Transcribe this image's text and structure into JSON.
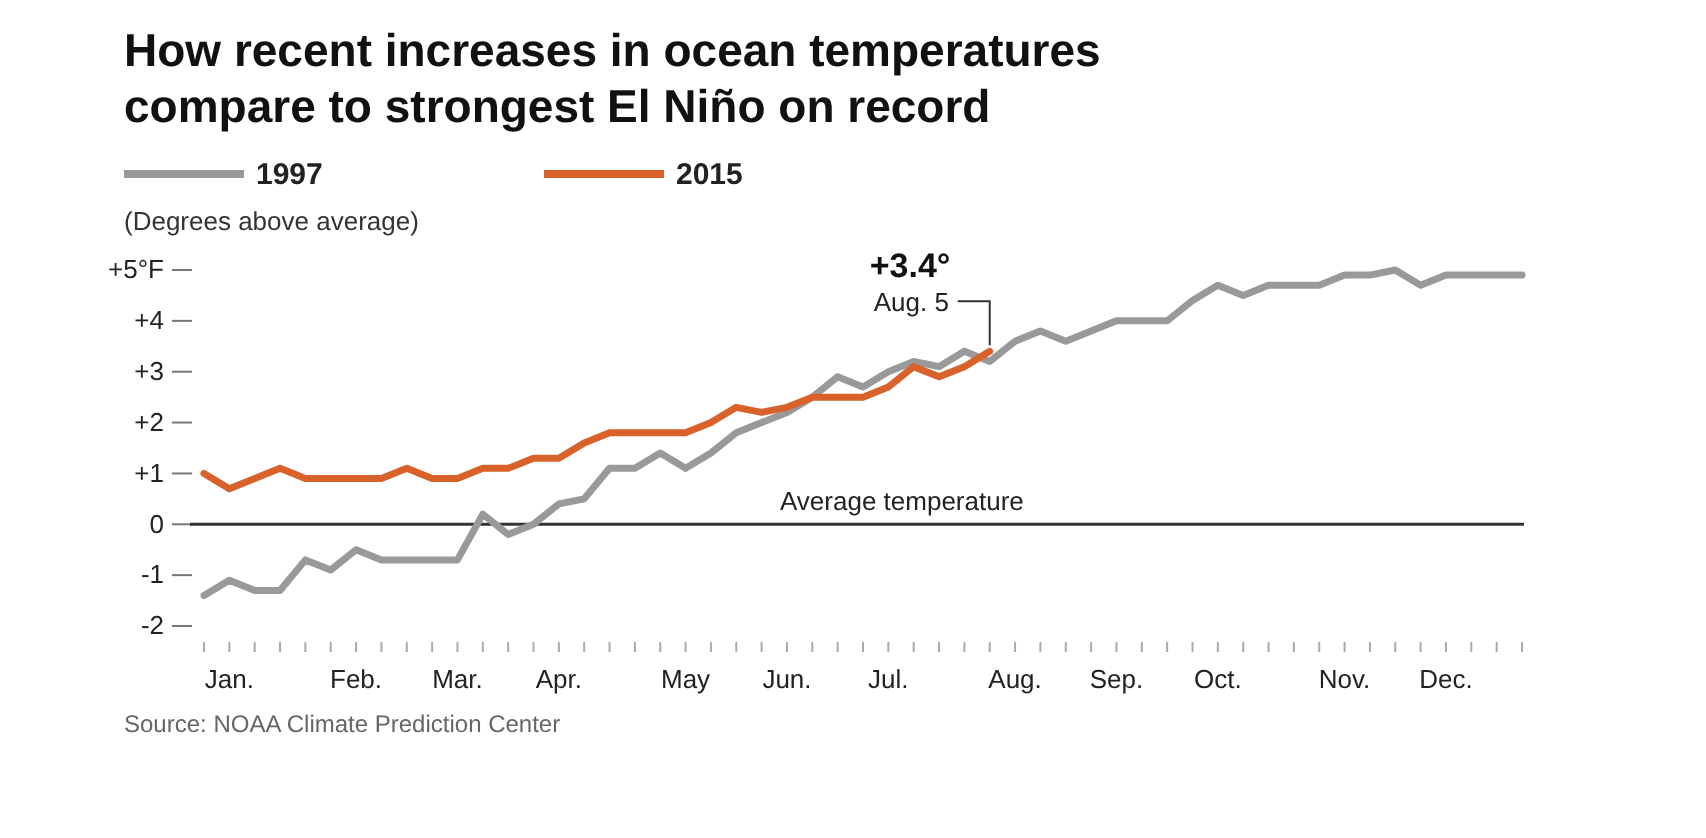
{
  "chart_data": {
    "type": "line",
    "title": "How recent increases in ocean temperatures\ncompare to strongest El Niño on record",
    "ylabel": "(Degrees above average)",
    "categories": [
      null,
      "Jan.",
      null,
      null,
      null,
      null,
      "Feb.",
      null,
      null,
      null,
      "Mar.",
      null,
      null,
      null,
      "Apr.",
      null,
      null,
      null,
      null,
      "May",
      null,
      null,
      null,
      "Jun.",
      null,
      null,
      null,
      "Jul.",
      null,
      null,
      null,
      null,
      "Aug.",
      null,
      null,
      null,
      "Sep.",
      null,
      null,
      null,
      "Oct.",
      null,
      null,
      null,
      null,
      "Nov.",
      null,
      null,
      null,
      "Dec.",
      null,
      null,
      null
    ],
    "series": [
      {
        "name": "1997",
        "color": "#999999",
        "values": [
          -1.4,
          -1.1,
          -1.3,
          -1.3,
          -0.7,
          -0.9,
          -0.5,
          -0.7,
          -0.7,
          -0.7,
          -0.7,
          0.2,
          -0.2,
          0,
          0.4,
          0.5,
          1.1,
          1.1,
          1.4,
          1.1,
          1.4,
          1.8,
          2.0,
          2.2,
          2.5,
          2.9,
          2.7,
          3.0,
          3.2,
          3.1,
          3.4,
          3.2,
          3.6,
          3.8,
          3.6,
          3.8,
          4.0,
          4.0,
          4.0,
          4.4,
          4.7,
          4.5,
          4.7,
          4.7,
          4.7,
          4.9,
          4.9,
          5.0,
          4.7,
          4.9,
          4.9,
          4.9,
          4.9
        ]
      },
      {
        "name": "2015",
        "color": "#d9622b",
        "values": [
          1.0,
          0.7,
          0.9,
          1.1,
          0.9,
          0.9,
          0.9,
          0.9,
          1.1,
          0.9,
          0.9,
          1.1,
          1.1,
          1.3,
          1.3,
          1.6,
          1.8,
          1.8,
          1.8,
          1.8,
          2.0,
          2.3,
          2.2,
          2.3,
          2.5,
          2.5,
          2.5,
          2.7,
          3.1,
          2.9,
          3.1,
          3.4,
          null,
          null,
          null,
          null,
          null,
          null,
          null,
          null,
          null,
          null,
          null,
          null,
          null,
          null,
          null,
          null,
          null,
          null,
          null,
          null,
          null
        ]
      }
    ],
    "ylim": [
      -2,
      5
    ],
    "yticks": [
      {
        "value": 5,
        "label": "+5°F"
      },
      {
        "value": 4,
        "label": "+4"
      },
      {
        "value": 3,
        "label": "+3"
      },
      {
        "value": 2,
        "label": "+2"
      },
      {
        "value": 1,
        "label": "+1"
      },
      0,
      -1,
      -2
    ],
    "ref_lines": [
      {
        "axis": "y",
        "value": 0,
        "label": "Average temperature",
        "color": "#333333"
      }
    ],
    "annotations": [
      {
        "text": "+3.4°",
        "y": 3.4
      },
      {
        "text": "Aug. 5",
        "y": 3.4
      },
      "Source: NOAA Climate Prediction Center"
    ],
    "legend": "top left",
    "grid": false,
    "marker": "none",
    "line_style": "solid"
  }
}
